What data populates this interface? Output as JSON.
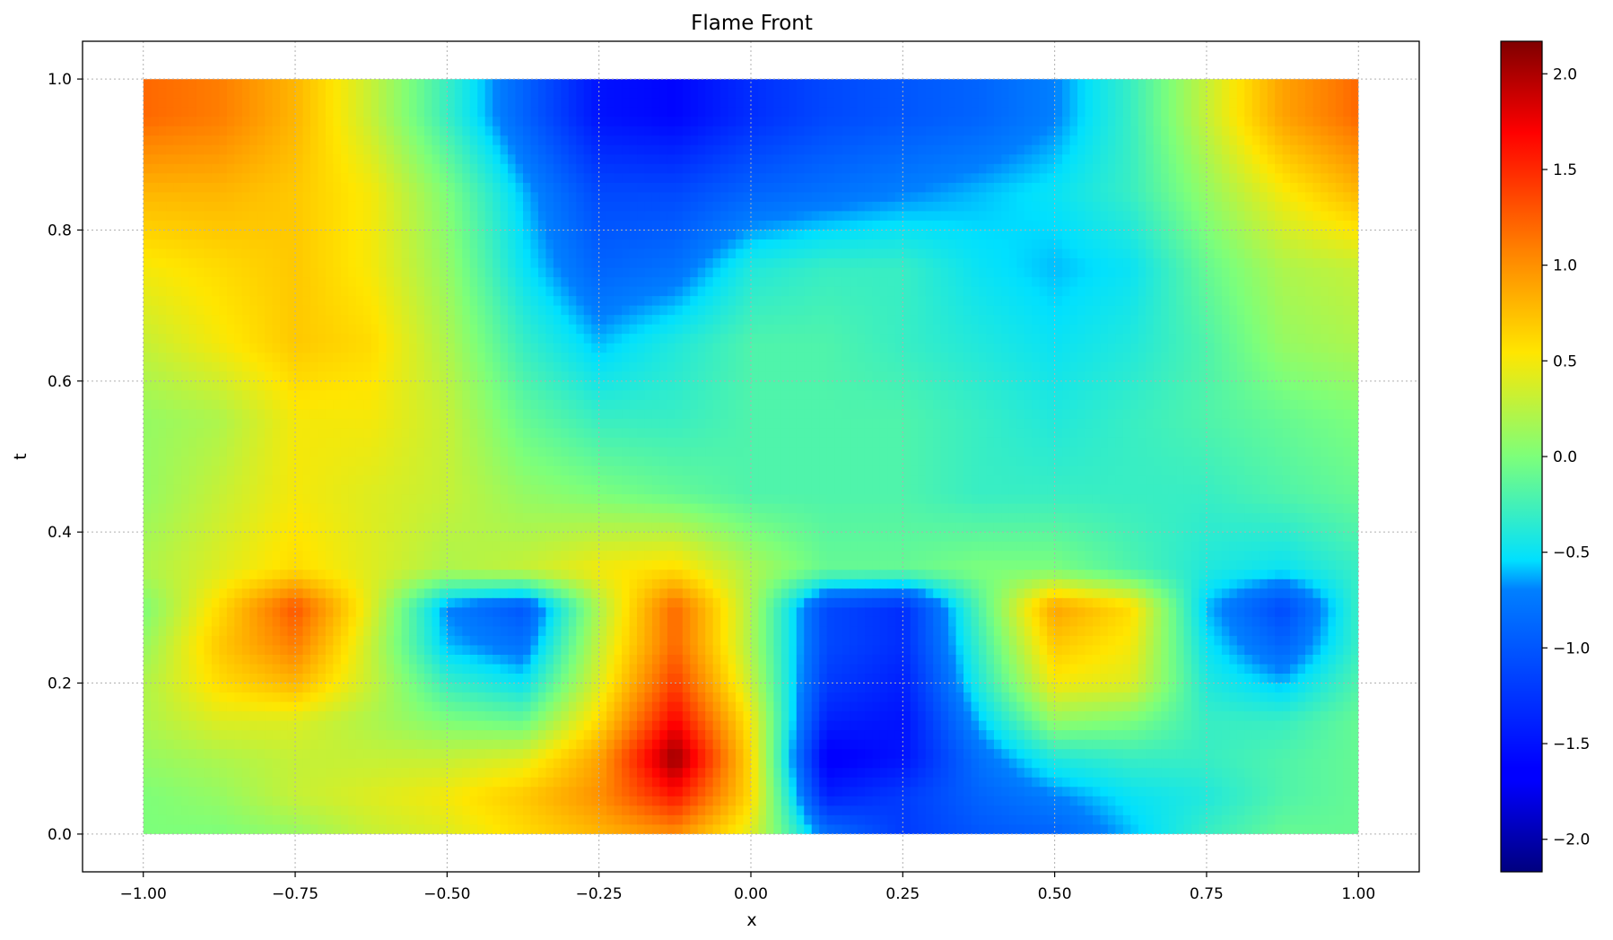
{
  "chart_data": {
    "type": "heatmap",
    "title": "Flame Front",
    "xlabel": "x",
    "ylabel": "t",
    "xlim": [
      -1.1,
      1.1
    ],
    "ylim": [
      -0.05,
      1.05
    ],
    "data_extent": {
      "x": [
        -1.0,
        1.0
      ],
      "t": [
        0.0,
        1.0
      ]
    },
    "grid": true,
    "colormap": "jet",
    "color_range": [
      -2.17,
      2.17
    ],
    "xticks": [
      -1.0,
      -0.75,
      -0.5,
      -0.25,
      0.0,
      0.25,
      0.5,
      0.75,
      1.0
    ],
    "xtick_labels": [
      "−1.00",
      "−0.75",
      "−0.50",
      "−0.25",
      "0.00",
      "0.25",
      "0.50",
      "0.75",
      "1.00"
    ],
    "yticks": [
      0.0,
      0.2,
      0.4,
      0.6,
      0.8,
      1.0
    ],
    "ytick_labels": [
      "0.0",
      "0.2",
      "0.4",
      "0.6",
      "0.8",
      "1.0"
    ],
    "colorbar_ticks": [
      2.0,
      1.5,
      1.0,
      0.5,
      0.0,
      -0.5,
      -1.0,
      -1.5,
      -2.0
    ],
    "colorbar_tick_labels": [
      "2.0",
      "1.5",
      "1.0",
      "0.5",
      "0.0",
      "−0.5",
      "−1.0",
      "−1.5",
      "−2.0"
    ],
    "x": [
      -1.0,
      -0.875,
      -0.75,
      -0.625,
      -0.5,
      -0.375,
      -0.25,
      -0.125,
      0.0,
      0.125,
      0.25,
      0.375,
      0.5,
      0.625,
      0.75,
      0.875,
      1.0
    ],
    "t": [
      0.0,
      0.05,
      0.1,
      0.15,
      0.2,
      0.25,
      0.3,
      0.35,
      0.45,
      0.55,
      0.65,
      0.75,
      0.85,
      0.95
    ],
    "values": [
      [
        0.0,
        0.0,
        0.1,
        0.3,
        0.4,
        0.6,
        0.8,
        1.0,
        0.4,
        -0.8,
        -1.2,
        -1.0,
        -0.9,
        -0.6,
        -0.3,
        -0.1,
        -0.1
      ],
      [
        0.0,
        0.1,
        0.3,
        0.4,
        0.5,
        0.7,
        1.0,
        1.6,
        0.6,
        -1.4,
        -1.2,
        -0.9,
        -0.7,
        -0.5,
        -0.4,
        -0.2,
        -0.1
      ],
      [
        0.1,
        0.2,
        0.3,
        0.3,
        0.3,
        0.4,
        0.9,
        2.1,
        0.6,
        -1.7,
        -1.5,
        -0.8,
        -0.4,
        -0.3,
        -0.3,
        -0.2,
        -0.1
      ],
      [
        0.2,
        0.4,
        0.4,
        0.2,
        0.0,
        -0.1,
        0.6,
        1.7,
        0.5,
        -1.4,
        -1.5,
        -0.6,
        0.1,
        0.0,
        -0.3,
        -0.3,
        -0.1
      ],
      [
        0.2,
        0.6,
        0.8,
        0.3,
        -0.3,
        -0.5,
        0.4,
        1.4,
        0.3,
        -1.2,
        -1.4,
        -0.4,
        0.5,
        0.4,
        -0.4,
        -0.6,
        -0.2
      ],
      [
        0.1,
        0.7,
        1.1,
        0.3,
        -0.6,
        -0.8,
        0.3,
        1.2,
        0.2,
        -1.1,
        -1.3,
        -0.3,
        0.7,
        0.5,
        -0.5,
        -0.9,
        -0.3
      ],
      [
        0.0,
        0.6,
        1.3,
        0.4,
        -0.7,
        -1.0,
        0.2,
        1.2,
        0.2,
        -1.1,
        -1.3,
        -0.2,
        0.9,
        0.6,
        -0.6,
        -1.1,
        -0.3
      ],
      [
        0.2,
        0.4,
        0.6,
        0.4,
        0.2,
        0.3,
        0.5,
        0.6,
        0.2,
        -0.1,
        -0.1,
        0.0,
        0.0,
        -0.2,
        -0.4,
        -0.5,
        -0.3
      ],
      [
        0.1,
        0.3,
        0.5,
        0.4,
        0.3,
        0.1,
        0.0,
        -0.1,
        -0.2,
        -0.2,
        -0.2,
        -0.3,
        -0.3,
        -0.3,
        -0.3,
        -0.2,
        -0.1
      ],
      [
        0.1,
        0.2,
        0.5,
        0.5,
        0.3,
        -0.1,
        -0.3,
        -0.3,
        -0.2,
        -0.2,
        -0.2,
        -0.3,
        -0.4,
        -0.3,
        -0.2,
        -0.1,
        0.0
      ],
      [
        0.3,
        0.5,
        0.7,
        0.6,
        0.2,
        -0.3,
        -0.6,
        -0.4,
        -0.2,
        -0.2,
        -0.3,
        -0.4,
        -0.5,
        -0.4,
        -0.2,
        0.1,
        0.2
      ],
      [
        0.5,
        0.6,
        0.7,
        0.5,
        0.1,
        -0.5,
        -0.9,
        -0.8,
        -0.4,
        -0.3,
        -0.3,
        -0.5,
        -0.6,
        -0.5,
        -0.1,
        0.2,
        0.3
      ],
      [
        0.8,
        0.8,
        0.7,
        0.5,
        0.0,
        -0.6,
        -1.1,
        -1.1,
        -0.9,
        -0.8,
        -0.7,
        -0.6,
        -0.5,
        -0.3,
        0.1,
        0.5,
        0.8
      ],
      [
        1.2,
        1.1,
        0.8,
        0.3,
        -0.3,
        -0.9,
        -1.5,
        -1.6,
        -1.3,
        -1.1,
        -1.0,
        -0.9,
        -0.7,
        -0.3,
        0.3,
        0.9,
        1.2
      ]
    ]
  }
}
